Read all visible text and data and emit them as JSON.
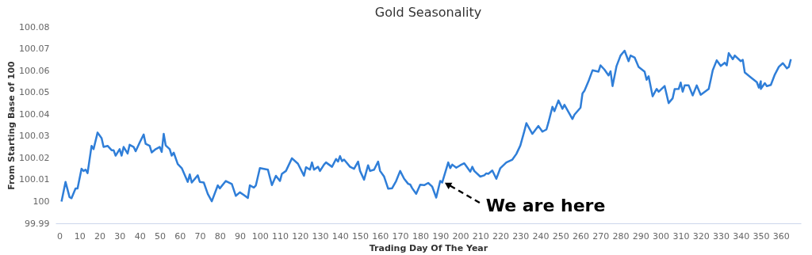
{
  "chart_data": {
    "type": "line",
    "title": "Gold Seasonality",
    "xlabel": "Trading Day Of The Year",
    "ylabel": "From Starting Base of 100",
    "x": [
      1,
      3,
      5,
      6,
      8,
      9,
      11,
      12,
      13,
      14,
      16,
      17,
      19,
      21,
      22,
      24,
      26,
      27,
      28,
      30,
      31,
      32,
      34,
      35,
      37,
      38,
      40,
      42,
      43,
      45,
      46,
      48,
      50,
      51,
      52,
      53,
      55,
      56,
      57,
      59,
      61,
      64,
      65,
      66,
      69,
      70,
      72,
      74,
      76,
      79,
      80,
      83,
      86,
      88,
      90,
      92,
      94,
      95,
      97,
      98,
      100,
      104,
      106,
      108,
      110,
      111,
      113,
      116,
      119,
      122,
      123,
      125,
      126,
      127,
      129,
      130,
      132,
      133,
      136,
      138,
      139,
      140,
      141,
      142,
      145,
      147,
      149,
      150,
      152,
      154,
      155,
      157,
      159,
      160,
      162,
      164,
      166,
      168,
      170,
      172,
      174,
      175,
      176,
      178,
      180,
      182,
      184,
      186,
      188,
      190,
      191,
      194,
      195,
      196,
      198,
      200,
      202,
      205,
      206,
      207,
      210,
      212,
      213,
      214,
      216,
      218,
      220,
      223,
      226,
      228,
      230,
      232,
      233,
      236,
      239,
      241,
      243,
      244,
      246,
      247,
      249,
      251,
      252,
      256,
      257,
      260,
      261,
      262,
      264,
      266,
      269,
      270,
      272,
      274,
      275,
      276,
      278,
      280,
      282,
      284,
      285,
      287,
      289,
      292,
      293,
      294,
      296,
      298,
      299,
      302,
      304,
      306,
      307,
      309,
      310,
      311,
      312,
      314,
      316,
      318,
      320,
      324,
      325,
      326,
      328,
      330,
      332,
      333,
      334,
      336,
      337,
      340,
      341,
      342,
      345,
      348,
      349,
      350,
      350,
      352,
      353,
      355,
      357,
      359,
      361,
      363,
      364,
      365
    ],
    "series": [
      {
        "color": "#2f7ed8",
        "values": [
          100.0,
          100.009,
          100.002,
          100.0015,
          100.006,
          100.006,
          100.015,
          100.014,
          100.0146,
          100.013,
          100.0255,
          100.024,
          100.0316,
          100.029,
          100.025,
          100.0255,
          100.0235,
          100.0235,
          100.021,
          100.024,
          100.021,
          100.025,
          100.022,
          100.026,
          100.025,
          100.023,
          100.027,
          100.0307,
          100.0264,
          100.0255,
          100.0225,
          100.024,
          100.025,
          100.0227,
          100.031,
          100.0257,
          100.024,
          100.021,
          100.0224,
          100.0172,
          100.0153,
          100.009,
          100.0124,
          100.0087,
          100.012,
          100.009,
          100.0087,
          100.0035,
          100.0001,
          100.0074,
          100.006,
          100.0094,
          100.008,
          100.0026,
          100.0042,
          100.003,
          100.0016,
          100.0074,
          100.0064,
          100.0074,
          100.0153,
          100.0146,
          100.0075,
          100.0118,
          100.0094,
          100.0127,
          100.014,
          100.0198,
          100.0173,
          100.0118,
          100.0157,
          100.0146,
          100.0179,
          100.0146,
          100.0159,
          100.014,
          100.0169,
          100.0179,
          100.0159,
          100.0195,
          100.0183,
          100.0208,
          100.0185,
          100.0192,
          100.0159,
          100.015,
          100.0183,
          100.014,
          100.01,
          100.0166,
          100.014,
          100.0146,
          100.0183,
          100.014,
          100.0114,
          100.0059,
          100.0061,
          100.0094,
          100.014,
          100.0104,
          100.0081,
          100.0078,
          100.0061,
          100.0035,
          100.0077,
          100.0075,
          100.0085,
          100.0068,
          100.0018,
          100.0094,
          100.0087,
          100.0179,
          100.0153,
          100.0169,
          100.0155,
          100.0166,
          100.0175,
          100.0137,
          100.0159,
          100.014,
          100.0114,
          100.012,
          100.0129,
          100.0127,
          100.0142,
          100.0104,
          100.0153,
          100.0179,
          100.0192,
          100.0218,
          100.0257,
          100.0323,
          100.0359,
          100.031,
          100.0346,
          100.032,
          100.033,
          100.0362,
          100.0434,
          100.0414,
          100.0463,
          100.0425,
          100.0443,
          100.0378,
          100.0398,
          100.043,
          100.0495,
          100.0508,
          100.0551,
          100.0601,
          100.0595,
          100.0624,
          100.0604,
          100.0578,
          100.0597,
          100.0529,
          100.0621,
          100.0669,
          100.0691,
          100.0643,
          100.0669,
          100.066,
          100.0617,
          100.0595,
          100.0558,
          100.0574,
          100.0482,
          100.0516,
          100.0503,
          100.0529,
          100.0451,
          100.0473,
          100.0515,
          100.0516,
          100.0545,
          100.0503,
          100.0532,
          100.0532,
          100.0486,
          100.0532,
          100.0489,
          100.0516,
          100.0558,
          100.0601,
          100.0647,
          100.0621,
          100.0636,
          100.0624,
          100.068,
          100.0652,
          100.0669,
          100.0643,
          100.0649,
          100.0591,
          100.0569,
          100.0547,
          100.0522,
          100.0551,
          100.0516,
          100.0542,
          100.0529,
          100.0534,
          100.0582,
          100.0617,
          100.0634,
          100.061,
          100.0617,
          100.0652
        ]
      }
    ],
    "xlim": [
      -2,
      370
    ],
    "ylim": [
      99.99,
      100.08
    ],
    "xticks": [
      0,
      10,
      20,
      30,
      40,
      50,
      60,
      70,
      80,
      90,
      100,
      110,
      120,
      130,
      140,
      150,
      160,
      170,
      180,
      190,
      200,
      210,
      220,
      230,
      240,
      250,
      260,
      270,
      280,
      290,
      300,
      310,
      320,
      330,
      340,
      350,
      360
    ],
    "yticks": [
      99.99,
      100,
      100.01,
      100.02,
      100.03,
      100.04,
      100.05,
      100.06,
      100.07,
      100.08
    ],
    "annotations": [
      {
        "text": "We are here",
        "x": 191,
        "y": 100.0087
      }
    ],
    "grid": false,
    "marker": "none",
    "line_style": "solid"
  }
}
